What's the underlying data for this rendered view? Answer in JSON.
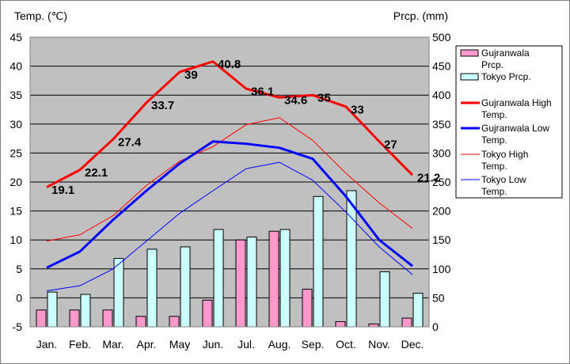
{
  "chart_data": {
    "type": "bar+line",
    "categories": [
      "Jan.",
      "Feb.",
      "Mar.",
      "Apr.",
      "May",
      "Jun.",
      "Jul.",
      "Aug.",
      "Sep.",
      "Oct.",
      "Nov.",
      "Dec."
    ],
    "left_axis": {
      "label": "Temp. (℃)",
      "min": -5,
      "max": 45,
      "step": 5
    },
    "right_axis": {
      "label": "Prcp. (mm)",
      "min": 0,
      "max": 500,
      "step": 50
    },
    "series": [
      {
        "key": "gpr",
        "name": "Gujranwala Prcp.",
        "kind": "bar",
        "axis": "right",
        "color": "#ff99cc",
        "values": [
          29,
          29,
          29,
          18,
          18,
          46,
          150,
          165,
          65,
          9,
          5,
          15
        ]
      },
      {
        "key": "tpr",
        "name": "Tokyo Prcp.",
        "kind": "bar",
        "axis": "right",
        "color": "#ccffff",
        "values": [
          60,
          56,
          118,
          134,
          138,
          168,
          155,
          168,
          225,
          235,
          95,
          58
        ]
      },
      {
        "key": "gh",
        "name": "Gujranwala High Temp.",
        "kind": "line",
        "axis": "left",
        "color": "#ff0000",
        "width": 3,
        "values": [
          19.1,
          22.1,
          27.4,
          33.7,
          39,
          40.8,
          36.1,
          34.6,
          35,
          33,
          27,
          21.2
        ]
      },
      {
        "key": "gl",
        "name": "Gujranwala Low Temp.",
        "kind": "line",
        "axis": "left",
        "color": "#0000ff",
        "width": 3,
        "values": [
          5.2,
          8,
          13.5,
          18.5,
          23.2,
          27,
          26.6,
          25.9,
          24,
          17.5,
          10,
          5.5
        ]
      },
      {
        "key": "th",
        "name": "Tokyo High Temp.",
        "kind": "line",
        "axis": "left",
        "color": "#ff0000",
        "width": 1,
        "values": [
          9.8,
          10.9,
          14.2,
          19.4,
          23.6,
          26.1,
          29.9,
          31.1,
          27.2,
          21.5,
          16.4,
          12
        ]
      },
      {
        "key": "tl",
        "name": "Tokyo Low Temp.",
        "kind": "line",
        "axis": "left",
        "color": "#0000ff",
        "width": 1,
        "values": [
          1.2,
          2.1,
          5,
          9.8,
          14.6,
          18.5,
          22.3,
          23.4,
          20.3,
          14.8,
          8.8,
          4
        ]
      }
    ],
    "data_labels": {
      "series": "gh",
      "texts": [
        "19.1",
        "22.1",
        "27.4",
        "33.7",
        "39",
        "40.8",
        "36.1",
        "34.6",
        "35",
        "33",
        "27",
        "21.2"
      ]
    },
    "legend": {
      "position": "right",
      "entries": [
        {
          "key": "gpr",
          "line1": "Gujranwala",
          "line2": "Prcp."
        },
        {
          "key": "tpr",
          "line1": "Tokyo Prcp.",
          "line2": ""
        },
        {
          "key": "gh",
          "line1": "Gujranwala High",
          "line2": "Temp."
        },
        {
          "key": "gl",
          "line1": "Gujranwala Low",
          "line2": "Temp."
        },
        {
          "key": "th",
          "line1": "Tokyo High",
          "line2": "Temp."
        },
        {
          "key": "tl",
          "line1": "Tokyo Low",
          "line2": "Temp."
        }
      ]
    },
    "colors": {
      "plot_background": "#c0c0c0",
      "grid": "#000000",
      "frame": "#808080"
    }
  }
}
